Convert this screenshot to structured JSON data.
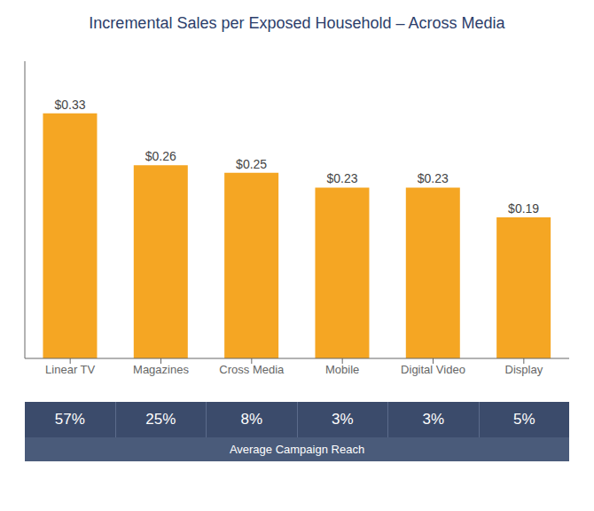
{
  "chart_data": {
    "type": "bar",
    "title": "Incremental Sales per Exposed Household – Across Media",
    "categories": [
      "Linear TV",
      "Magazines",
      "Cross Media",
      "Mobile",
      "Digital Video",
      "Display"
    ],
    "values": [
      0.33,
      0.26,
      0.25,
      0.23,
      0.23,
      0.19
    ],
    "value_labels": [
      "$0.33",
      "$0.26",
      "$0.25",
      "$0.23",
      "$0.23",
      "$0.19"
    ],
    "data_labels": true,
    "color": "#F5A623",
    "ylim": [
      0,
      0.4
    ],
    "tick_labels": "x",
    "grid": false,
    "reach": [
      57,
      25,
      8,
      3,
      3,
      5
    ],
    "reach_labels": [
      "57%",
      "25%",
      "8%",
      "3%",
      "3%",
      "5%"
    ],
    "reach_title": "Average Campaign Reach"
  }
}
